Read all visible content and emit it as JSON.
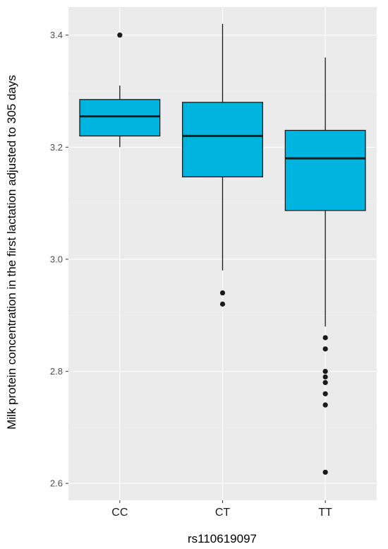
{
  "chart_data": {
    "type": "boxplot",
    "title": "",
    "xlabel": "rs110619097",
    "ylabel": "Milk protein concentration in the first lactation adjusted to 305 days",
    "ylim": [
      2.57,
      3.45
    ],
    "y_ticks": [
      2.6,
      2.8,
      3.0,
      3.2,
      3.4
    ],
    "y_tick_labels": [
      "2.6",
      "2.8",
      "3.0",
      "3.2",
      "3.4"
    ],
    "grid": true,
    "box_color": "#00b4e0",
    "panel_color": "#ebebeb",
    "categories": [
      "CC",
      "CT",
      "TT"
    ],
    "boxes": [
      {
        "category": "CC",
        "whisker_low": 3.2,
        "q1": 3.22,
        "median": 3.255,
        "q3": 3.285,
        "whisker_high": 3.31,
        "outliers": [
          3.4
        ]
      },
      {
        "category": "CT",
        "whisker_low": 2.98,
        "q1": 3.147,
        "median": 3.22,
        "q3": 3.28,
        "whisker_high": 3.42,
        "outliers": [
          2.94,
          2.92
        ]
      },
      {
        "category": "TT",
        "whisker_low": 2.88,
        "q1": 3.087,
        "median": 3.18,
        "q3": 3.23,
        "whisker_high": 3.36,
        "outliers": [
          2.86,
          2.84,
          2.8,
          2.79,
          2.78,
          2.76,
          2.74,
          2.62
        ]
      }
    ]
  }
}
